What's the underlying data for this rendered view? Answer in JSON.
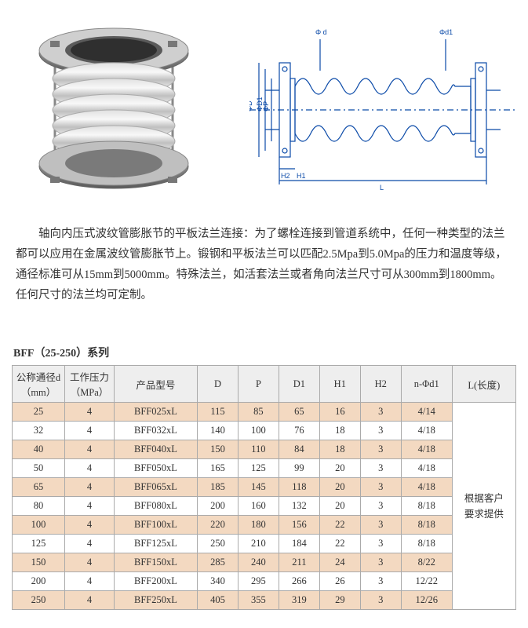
{
  "description": "轴向内压式波纹管膨胀节的平板法兰连接：为了螺栓连接到管道系统中，任何一种类型的法兰都可以应用在金属波纹管膨胀节上。锻钢和平板法兰可以匹配2.5Mpa到5.0Mpa的压力和温度等级，通径标准可从15mm到5000mm。特殊法兰，如活套法兰或者角向法兰尺寸可从300mm到1800mm。任何尺寸的法兰均可定制。",
  "series_title": "BFF（25-250）系列",
  "diagram": {
    "line_color": "#0b4aa8",
    "labels": {
      "phi_d": "Φ d",
      "phi_d1": "Φd1",
      "phi_D": "ΦD",
      "phi_D1": "ΦD1",
      "phi_P": "ΦP",
      "H2": "H2",
      "H1": "H1",
      "L": "L"
    }
  },
  "table": {
    "headers": {
      "d": "公称通径d（mm）",
      "mpa": "工作压力（MPa）",
      "model": "产品型号",
      "D": "D",
      "P": "P",
      "D1": "D1",
      "H1": "H1",
      "H2": "H2",
      "nd1": "n-Φd1",
      "L": "L(长度)"
    },
    "len_merged": "根据客户要求提供",
    "row_colors": {
      "odd": "#f3d9c1",
      "even": "#ffffff",
      "header": "#eeeeee",
      "border": "#aaaaaa"
    },
    "rows": [
      {
        "d": "25",
        "mpa": "4",
        "model": "BFF025xL",
        "D": "115",
        "P": "85",
        "D1": "65",
        "H1": "16",
        "H2": "3",
        "nd1": "4/14"
      },
      {
        "d": "32",
        "mpa": "4",
        "model": "BFF032xL",
        "D": "140",
        "P": "100",
        "D1": "76",
        "H1": "18",
        "H2": "3",
        "nd1": "4/18"
      },
      {
        "d": "40",
        "mpa": "4",
        "model": "BFF040xL",
        "D": "150",
        "P": "110",
        "D1": "84",
        "H1": "18",
        "H2": "3",
        "nd1": "4/18"
      },
      {
        "d": "50",
        "mpa": "4",
        "model": "BFF050xL",
        "D": "165",
        "P": "125",
        "D1": "99",
        "H1": "20",
        "H2": "3",
        "nd1": "4/18"
      },
      {
        "d": "65",
        "mpa": "4",
        "model": "BFF065xL",
        "D": "185",
        "P": "145",
        "D1": "118",
        "H1": "20",
        "H2": "3",
        "nd1": "4/18"
      },
      {
        "d": "80",
        "mpa": "4",
        "model": "BFF080xL",
        "D": "200",
        "P": "160",
        "D1": "132",
        "H1": "20",
        "H2": "3",
        "nd1": "8/18"
      },
      {
        "d": "100",
        "mpa": "4",
        "model": "BFF100xL",
        "D": "220",
        "P": "180",
        "D1": "156",
        "H1": "22",
        "H2": "3",
        "nd1": "8/18"
      },
      {
        "d": "125",
        "mpa": "4",
        "model": "BFF125xL",
        "D": "250",
        "P": "210",
        "D1": "184",
        "H1": "22",
        "H2": "3",
        "nd1": "8/18"
      },
      {
        "d": "150",
        "mpa": "4",
        "model": "BFF150xL",
        "D": "285",
        "P": "240",
        "D1": "211",
        "H1": "24",
        "H2": "3",
        "nd1": "8/22"
      },
      {
        "d": "200",
        "mpa": "4",
        "model": "BFF200xL",
        "D": "340",
        "P": "295",
        "D1": "266",
        "H1": "26",
        "H2": "3",
        "nd1": "12/22"
      },
      {
        "d": "250",
        "mpa": "4",
        "model": "BFF250xL",
        "D": "405",
        "P": "355",
        "D1": "319",
        "H1": "29",
        "H2": "3",
        "nd1": "12/26"
      }
    ]
  }
}
